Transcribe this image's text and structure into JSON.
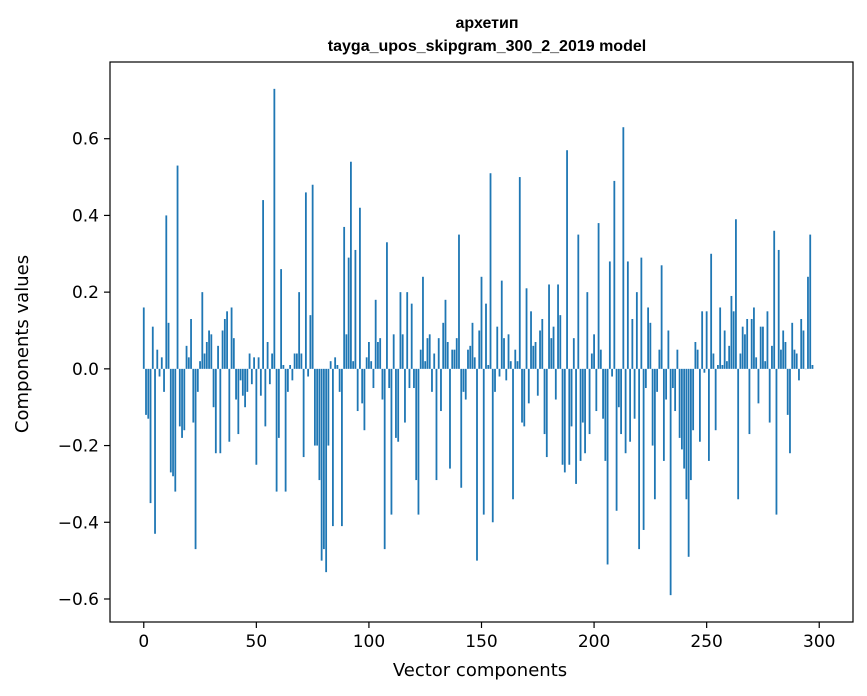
{
  "chart_data": {
    "type": "bar",
    "title": "архетип",
    "subtitle": "tayga_upos_skipgram_300_2_2019 model",
    "xlabel": "Vector components",
    "ylabel": "Components values",
    "xlim": [
      -15,
      315
    ],
    "ylim": [
      -0.66,
      0.8
    ],
    "xticks": [
      0,
      50,
      100,
      150,
      200,
      250,
      300
    ],
    "yticks": [
      -0.6,
      -0.4,
      -0.2,
      0.0,
      0.2,
      0.4,
      0.6
    ],
    "xtick_labels": [
      "0",
      "50",
      "100",
      "150",
      "200",
      "250",
      "300"
    ],
    "ytick_labels": [
      "−0.6",
      "−0.4",
      "−0.2",
      "0.0",
      "0.2",
      "0.4",
      "0.6"
    ],
    "grid": false,
    "bar_color": "#1f77b4",
    "values": [
      0.16,
      -0.12,
      -0.13,
      -0.35,
      0.11,
      -0.43,
      0.05,
      -0.02,
      0.03,
      -0.06,
      0.4,
      0.12,
      -0.27,
      -0.28,
      -0.32,
      0.53,
      -0.15,
      -0.18,
      -0.16,
      0.06,
      0.03,
      0.13,
      -0.14,
      -0.47,
      -0.06,
      0.02,
      0.2,
      0.04,
      0.07,
      0.1,
      0.09,
      -0.1,
      -0.22,
      0.06,
      -0.22,
      0.1,
      0.13,
      0.15,
      -0.19,
      0.16,
      0.08,
      -0.08,
      -0.17,
      -0.03,
      -0.07,
      -0.1,
      -0.06,
      0.04,
      -0.04,
      0.03,
      -0.25,
      0.03,
      -0.07,
      0.44,
      -0.15,
      0.07,
      -0.04,
      0.04,
      0.73,
      -0.32,
      -0.18,
      0.26,
      0.01,
      -0.32,
      -0.06,
      0.01,
      -0.03,
      0.04,
      0.04,
      0.2,
      0.04,
      -0.23,
      0.46,
      -0.02,
      0.14,
      0.48,
      -0.2,
      -0.2,
      -0.29,
      -0.5,
      -0.47,
      -0.53,
      -0.2,
      0.02,
      -0.41,
      0.03,
      0.01,
      -0.06,
      -0.41,
      0.37,
      0.09,
      0.29,
      0.54,
      0.02,
      0.31,
      -0.11,
      0.42,
      -0.09,
      -0.16,
      0.03,
      0.07,
      0.02,
      -0.05,
      0.18,
      0.07,
      0.08,
      -0.08,
      -0.47,
      0.33,
      -0.05,
      -0.38,
      0.09,
      -0.18,
      -0.19,
      0.2,
      0.09,
      -0.14,
      0.2,
      -0.05,
      0.17,
      -0.05,
      -0.29,
      -0.38,
      0.05,
      0.24,
      0.02,
      0.08,
      0.09,
      -0.06,
      0.04,
      -0.29,
      0.08,
      -0.11,
      0.12,
      0.18,
      0.07,
      -0.26,
      0.05,
      0.05,
      0.08,
      0.35,
      -0.31,
      -0.06,
      -0.08,
      0.05,
      0.06,
      0.12,
      0.03,
      -0.5,
      0.1,
      0.24,
      -0.38,
      0.17,
      0.01,
      0.51,
      -0.4,
      -0.06,
      0.11,
      -0.02,
      0.23,
      0.08,
      -0.03,
      0.09,
      0.02,
      -0.34,
      0.05,
      0.02,
      0.5,
      -0.14,
      -0.15,
      0.21,
      -0.09,
      0.15,
      0.06,
      0.07,
      -0.07,
      0.1,
      0.13,
      -0.17,
      -0.23,
      0.22,
      0.08,
      0.11,
      -0.08,
      0.22,
      0.14,
      -0.25,
      -0.27,
      0.57,
      -0.25,
      -0.15,
      0.08,
      -0.3,
      0.35,
      -0.24,
      -0.14,
      -0.22,
      0.2,
      -0.17,
      0.04,
      0.09,
      -0.11,
      0.38,
      0.05,
      -0.13,
      -0.24,
      -0.51,
      0.28,
      -0.02,
      0.49,
      -0.37,
      -0.1,
      -0.17,
      0.63,
      -0.22,
      0.28,
      -0.19,
      0.13,
      -0.13,
      0.2,
      -0.47,
      0.29,
      -0.42,
      -0.05,
      0.16,
      0.12,
      -0.2,
      -0.34,
      -0.06,
      0.05,
      0.27,
      -0.24,
      -0.08,
      0.1,
      -0.59,
      -0.05,
      -0.11,
      0.05,
      -0.18,
      -0.21,
      -0.26,
      -0.34,
      -0.49,
      -0.29,
      -0.16,
      0.07,
      0.05,
      -0.19,
      0.15,
      -0.01,
      0.15,
      -0.24,
      0.3,
      0.04,
      -0.16,
      0.01,
      0.16,
      0.01,
      0.1,
      0.02,
      0.06,
      0.19,
      0.15,
      0.39,
      -0.34,
      0.04,
      0.11,
      0.09,
      0.13,
      -0.17,
      0.13,
      0.16,
      0.03,
      -0.09,
      0.11,
      0.11,
      0.02,
      0.15,
      -0.14,
      0.06,
      0.36,
      -0.38,
      0.31,
      0.05,
      0.1,
      0.07,
      -0.12,
      -0.22,
      0.12,
      0.05,
      0.04,
      -0.03,
      0.13,
      0.1,
      0.0,
      0.24,
      0.35,
      0.01
    ]
  }
}
